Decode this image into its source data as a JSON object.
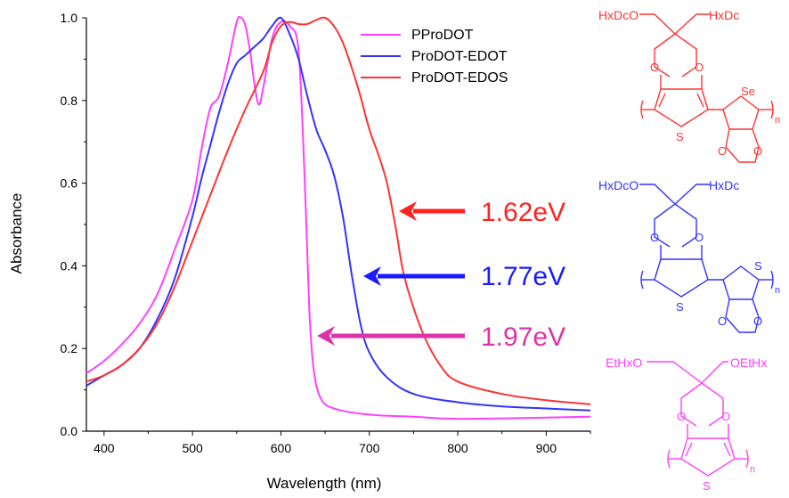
{
  "chart_data": {
    "type": "line",
    "xlabel": "Wavelength (nm)",
    "ylabel": "Absorbance",
    "xlim": [
      380,
      950
    ],
    "ylim": [
      0.0,
      1.0
    ],
    "x_ticks": [
      "400",
      "500",
      "600",
      "700",
      "800",
      "900"
    ],
    "y_ticks": [
      "0.0",
      "0.2",
      "0.4",
      "0.6",
      "0.8",
      "1.0"
    ],
    "legend_position": "top-center",
    "series": [
      {
        "name": "PProDOT",
        "color": "#ff40ff",
        "points": [
          [
            380,
            0.14
          ],
          [
            400,
            0.17
          ],
          [
            420,
            0.21
          ],
          [
            440,
            0.26
          ],
          [
            460,
            0.33
          ],
          [
            480,
            0.44
          ],
          [
            500,
            0.56
          ],
          [
            510,
            0.68
          ],
          [
            520,
            0.78
          ],
          [
            530,
            0.81
          ],
          [
            540,
            0.89
          ],
          [
            550,
            0.99
          ],
          [
            555,
            1.0
          ],
          [
            560,
            0.98
          ],
          [
            565,
            0.92
          ],
          [
            570,
            0.84
          ],
          [
            575,
            0.79
          ],
          [
            580,
            0.83
          ],
          [
            590,
            0.95
          ],
          [
            600,
            0.99
          ],
          [
            610,
            0.98
          ],
          [
            620,
            0.92
          ],
          [
            627,
            0.6
          ],
          [
            632,
            0.3
          ],
          [
            637,
            0.15
          ],
          [
            645,
            0.08
          ],
          [
            660,
            0.055
          ],
          [
            700,
            0.04
          ],
          [
            750,
            0.035
          ],
          [
            800,
            0.03
          ],
          [
            900,
            0.033
          ],
          [
            950,
            0.035
          ]
        ]
      },
      {
        "name": "ProDOT-EDOT",
        "color": "#3333ff",
        "points": [
          [
            380,
            0.11
          ],
          [
            400,
            0.135
          ],
          [
            420,
            0.16
          ],
          [
            440,
            0.2
          ],
          [
            460,
            0.27
          ],
          [
            480,
            0.37
          ],
          [
            500,
            0.52
          ],
          [
            510,
            0.61
          ],
          [
            520,
            0.69
          ],
          [
            530,
            0.77
          ],
          [
            540,
            0.84
          ],
          [
            550,
            0.89
          ],
          [
            560,
            0.91
          ],
          [
            570,
            0.93
          ],
          [
            580,
            0.95
          ],
          [
            590,
            0.98
          ],
          [
            600,
            1.0
          ],
          [
            610,
            0.96
          ],
          [
            620,
            0.9
          ],
          [
            630,
            0.81
          ],
          [
            640,
            0.73
          ],
          [
            650,
            0.68
          ],
          [
            660,
            0.62
          ],
          [
            670,
            0.52
          ],
          [
            680,
            0.38
          ],
          [
            690,
            0.26
          ],
          [
            700,
            0.19
          ],
          [
            720,
            0.13
          ],
          [
            750,
            0.09
          ],
          [
            800,
            0.07
          ],
          [
            850,
            0.06
          ],
          [
            900,
            0.055
          ],
          [
            950,
            0.05
          ]
        ]
      },
      {
        "name": "ProDOT-EDOS",
        "color": "#ff3333",
        "points": [
          [
            380,
            0.12
          ],
          [
            400,
            0.135
          ],
          [
            420,
            0.16
          ],
          [
            440,
            0.2
          ],
          [
            460,
            0.26
          ],
          [
            480,
            0.35
          ],
          [
            500,
            0.46
          ],
          [
            520,
            0.57
          ],
          [
            540,
            0.68
          ],
          [
            560,
            0.78
          ],
          [
            580,
            0.87
          ],
          [
            590,
            0.94
          ],
          [
            600,
            0.98
          ],
          [
            610,
            0.99
          ],
          [
            620,
            0.985
          ],
          [
            630,
            0.985
          ],
          [
            640,
            0.995
          ],
          [
            650,
            1.0
          ],
          [
            660,
            0.98
          ],
          [
            670,
            0.94
          ],
          [
            680,
            0.88
          ],
          [
            690,
            0.81
          ],
          [
            700,
            0.73
          ],
          [
            710,
            0.67
          ],
          [
            720,
            0.6
          ],
          [
            730,
            0.49
          ],
          [
            740,
            0.37
          ],
          [
            760,
            0.24
          ],
          [
            780,
            0.16
          ],
          [
            800,
            0.12
          ],
          [
            850,
            0.09
          ],
          [
            900,
            0.075
          ],
          [
            950,
            0.065
          ]
        ]
      }
    ],
    "annotations": [
      {
        "text": "1.62eV",
        "color": "#ff2222"
      },
      {
        "text": "1.77eV",
        "color": "#1a1aff"
      },
      {
        "text": "1.97eV",
        "color": "#dd33aa"
      }
    ]
  },
  "structures": [
    {
      "color": "#ff3333",
      "top_left": "HxDcO",
      "top_right": "HxDc",
      "heteroatom_left": "S",
      "heteroatom_right": "Se",
      "subscript": "n"
    },
    {
      "color": "#3333ff",
      "top_left": "HxDcO",
      "top_right": "HxDc",
      "heteroatom_left": "S",
      "heteroatom_right": "S",
      "subscript": "n"
    },
    {
      "color": "#ff40ff",
      "top_left": "EtHxO",
      "top_right": "OEtHx",
      "heteroatom_left": "S",
      "subscript": "n"
    }
  ]
}
